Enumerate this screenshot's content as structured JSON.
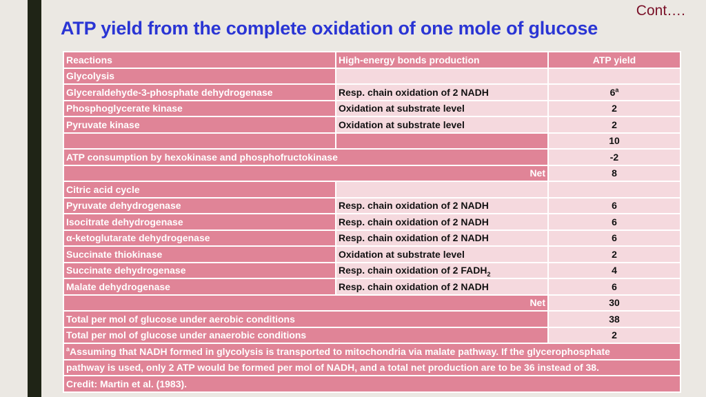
{
  "header": {
    "cont": "Cont….",
    "title": "ATP yield from the complete oxidation of one mole of glucose"
  },
  "table": {
    "columns": [
      "Reactions",
      "High-energy bonds production",
      "ATP yield"
    ],
    "glycolysis": {
      "label": "Glycolysis",
      "rows": [
        {
          "reaction": "Glyceraldehyde-3-phosphate dehydrogenase",
          "production": "Resp. chain oxidation of 2 NADH",
          "yield": "6",
          "yield_sup": "a"
        },
        {
          "reaction": "Phosphoglycerate kinase",
          "production": "Oxidation at substrate level",
          "yield": "2"
        },
        {
          "reaction": "Pyruvate kinase",
          "production": "Oxidation at substrate level",
          "yield": "2"
        }
      ],
      "subtotal": "10",
      "consumption_label": "ATP consumption by hexokinase and phosphofructokinase",
      "consumption": "-2",
      "net_label": "Net",
      "net": "8"
    },
    "citric": {
      "label": "Citric acid cycle",
      "rows": [
        {
          "reaction": "Pyruvate dehydrogenase",
          "production": "Resp. chain oxidation of 2 NADH",
          "yield": "6"
        },
        {
          "reaction": "Isocitrate dehydrogenase",
          "production": "Resp. chain oxidation of 2 NADH",
          "yield": "6"
        },
        {
          "reaction": "α-ketoglutarate dehydrogenase",
          "production": "Resp. chain oxidation of 2 NADH",
          "yield": "6"
        },
        {
          "reaction": "Succinate thiokinase",
          "production": "Oxidation at substrate level",
          "yield": "2"
        },
        {
          "reaction": "Succinate dehydrogenase",
          "production": "Resp. chain oxidation of 2 FADH",
          "production_sub": "2",
          "yield": "4"
        },
        {
          "reaction": "Malate dehydrogenase",
          "production": "Resp. chain oxidation of 2 NADH",
          "yield": "6"
        }
      ],
      "net_label": "Net",
      "net": "30"
    },
    "totals": [
      {
        "label": "Total per mol of glucose under aerobic conditions",
        "value": "38"
      },
      {
        "label": "Total per mol of glucose under anaerobic conditions",
        "value": "2"
      }
    ],
    "footnote": {
      "marker": "a",
      "line1": "Assuming that NADH formed in glycolysis is transported to mitochondria via malate pathway. If the glycerophosphate",
      "line2": "pathway is used, only 2 ATP would be formed per mol of NADH, and a total net production are to be 36 instead of 38."
    },
    "credit": "Credit: Martin et al. (1983)."
  }
}
